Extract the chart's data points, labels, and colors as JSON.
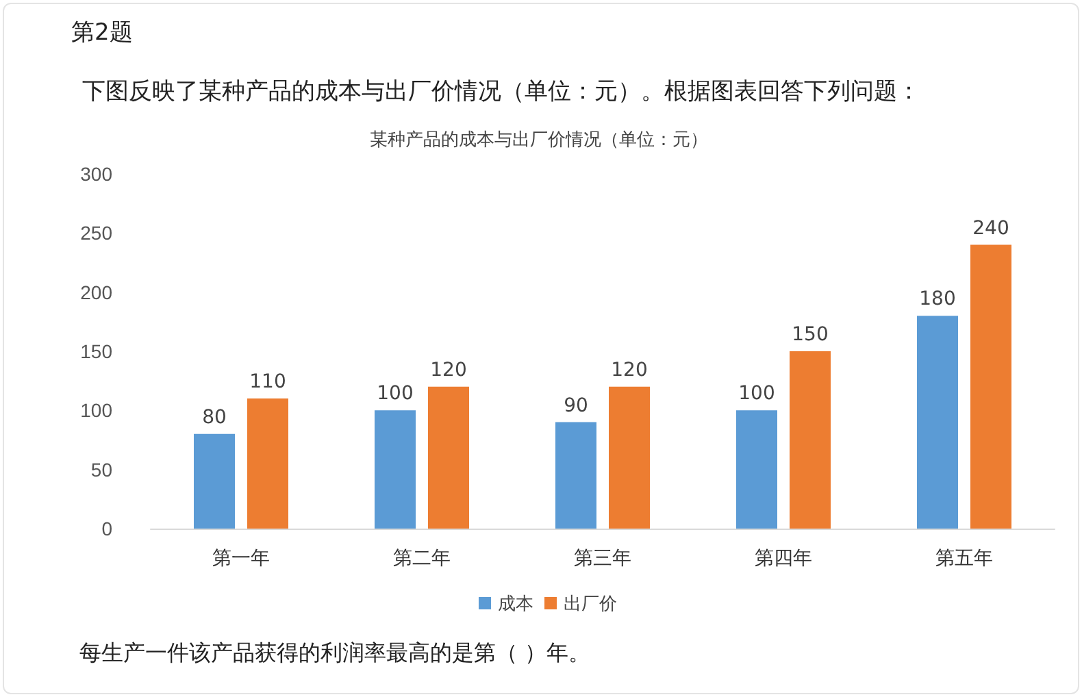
{
  "chart_data": {
    "type": "bar",
    "title": "某种产品的成本与出厂价情况（单位：元）",
    "annotations": [
      "第2题",
      "下图反映了某种产品的成本与出厂价情况（单位：元）。根据图表回答下列问题：",
      "每生产一件该产品获得的利润率最高的是第（  ）年。"
    ],
    "categories": [
      "第一年",
      "第二年",
      "第三年",
      "第四年",
      "第五年"
    ],
    "series": [
      {
        "name": "成本",
        "color": "#5b9bd5",
        "values": [
          80,
          100,
          90,
          100,
          180
        ]
      },
      {
        "name": "出厂价",
        "color": "#ed7d31",
        "values": [
          110,
          120,
          120,
          150,
          240
        ]
      }
    ],
    "ylim": [
      0,
      300
    ],
    "yticks": [
      0,
      50,
      100,
      150,
      200,
      250,
      300
    ],
    "grid": false,
    "legend": "bottom",
    "data_labels": true
  }
}
